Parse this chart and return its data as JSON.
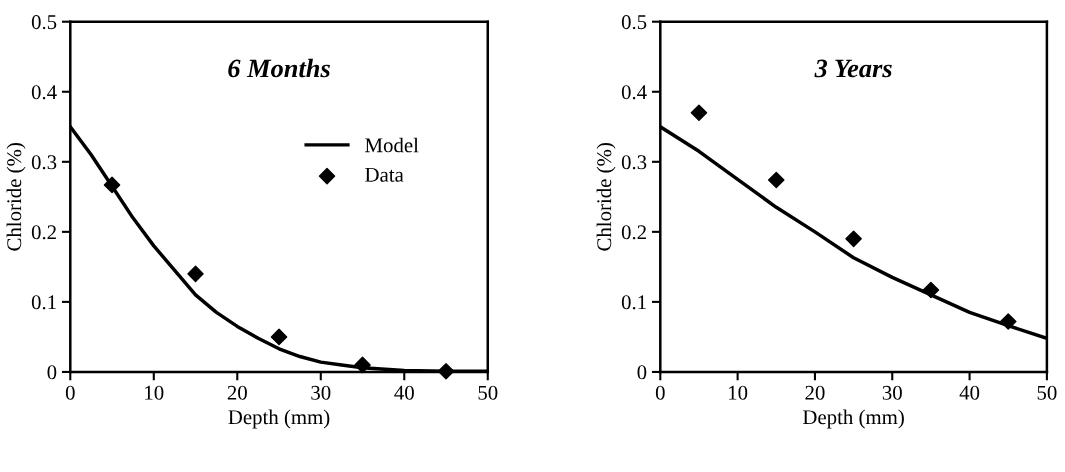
{
  "chart_data": [
    {
      "type": "line",
      "title": "6 Months",
      "xlabel": "Depth (mm)",
      "ylabel": "Chloride (%)",
      "xlim": [
        0,
        50
      ],
      "xticks": [
        0,
        10,
        20,
        30,
        40,
        50
      ],
      "ylim": [
        0,
        0.5
      ],
      "yticks": [
        0,
        0.1,
        0.2,
        0.3,
        0.4,
        0.5
      ],
      "legend": "center right",
      "grid": false,
      "series": [
        {
          "name": "Model",
          "color": "#000000",
          "marker": "none",
          "line_style": "solid",
          "x": [
            0,
            2.5,
            5,
            7.5,
            10,
            12.5,
            15,
            17.5,
            20,
            22.5,
            25,
            27.5,
            30,
            32.5,
            35,
            40,
            45,
            50
          ],
          "values": [
            0.35,
            0.31,
            0.265,
            0.22,
            0.18,
            0.145,
            0.11,
            0.085,
            0.065,
            0.048,
            0.033,
            0.022,
            0.014,
            0.01,
            0.006,
            0.002,
            0.001,
            0.001
          ]
        },
        {
          "name": "Data",
          "type": "scatter",
          "color": "#000000",
          "marker": "diamond",
          "x": [
            5,
            15,
            25,
            35,
            45
          ],
          "values": [
            0.267,
            0.14,
            0.05,
            0.01,
            0.001
          ]
        }
      ]
    },
    {
      "type": "line",
      "title": "3 Years",
      "xlabel": "Depth (mm)",
      "ylabel": "Chloride (%)",
      "xlim": [
        0,
        50
      ],
      "xticks": [
        0,
        10,
        20,
        30,
        40,
        50
      ],
      "ylim": [
        0,
        0.5
      ],
      "yticks": [
        0,
        0.1,
        0.2,
        0.3,
        0.4,
        0.5
      ],
      "grid": false,
      "series": [
        {
          "color": "#000000",
          "marker": "none",
          "line_style": "solid",
          "x": [
            0,
            5,
            10,
            15,
            20,
            25,
            30,
            35,
            40,
            45,
            50
          ],
          "values": [
            0.35,
            0.315,
            0.275,
            0.235,
            0.2,
            0.163,
            0.135,
            0.11,
            0.085,
            0.066,
            0.048
          ]
        },
        {
          "type": "scatter",
          "color": "#000000",
          "marker": "diamond",
          "x": [
            5,
            15,
            25,
            35,
            45
          ],
          "values": [
            0.37,
            0.274,
            0.19,
            0.117,
            0.072
          ]
        }
      ]
    }
  ]
}
